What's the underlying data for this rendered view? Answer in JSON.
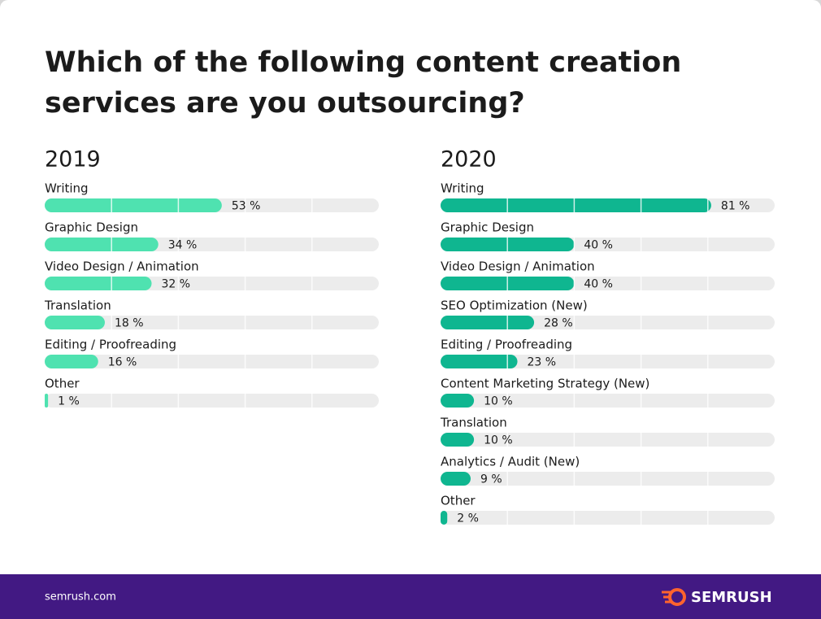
{
  "title": [
    "Which of the following content creation",
    "services are you outsourcing?"
  ],
  "footer": {
    "source": "semrush.com",
    "brand": "SEMRUSH"
  },
  "chart_data": [
    {
      "type": "bar",
      "title": "2019",
      "categories": [
        "Writing",
        "Graphic Design",
        "Video Design / Animation",
        "Translation",
        "Editing / Proofreading",
        "Other"
      ],
      "values": [
        53,
        34,
        32,
        18,
        16,
        1
      ],
      "value_labels": [
        "53 %",
        "34 %",
        "32 %",
        "18 %",
        "16 %",
        "1 %"
      ],
      "color": "#4fe2b0",
      "xlim": [
        0,
        100
      ],
      "xticks": [
        20,
        40,
        60,
        80
      ],
      "grid": true
    },
    {
      "type": "bar",
      "title": "2020",
      "categories": [
        "Writing",
        "Graphic Design",
        "Video Design / Animation",
        "SEO Optimization (New)",
        "Editing / Proofreading",
        "Content Marketing Strategy (New)",
        "Translation",
        "Analytics / Audit (New)",
        "Other"
      ],
      "values": [
        81,
        40,
        40,
        28,
        23,
        10,
        10,
        9,
        2
      ],
      "value_labels": [
        "81 %",
        "40 %",
        "40 %",
        "28 %",
        "23 %",
        "10 %",
        "10 %",
        "9 %",
        "2 %"
      ],
      "color": "#0fb690",
      "xlim": [
        0,
        100
      ],
      "xticks": [
        20,
        40,
        60,
        80
      ],
      "grid": true
    }
  ]
}
